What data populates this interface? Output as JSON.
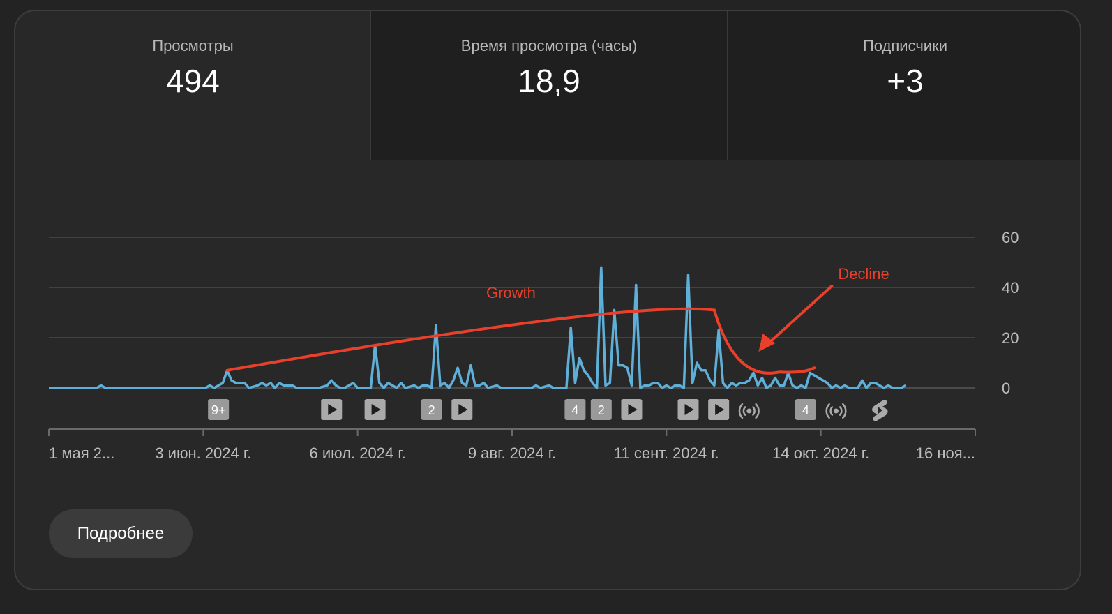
{
  "metrics": [
    {
      "label": "Просмотры",
      "value": "494"
    },
    {
      "label": "Время просмотра (часы)",
      "value": "18,9"
    },
    {
      "label": "Подписчики",
      "value": "+3"
    }
  ],
  "more_button": "Подробнее",
  "chart_data": {
    "type": "line",
    "title": "",
    "xlabel": "",
    "ylabel": "",
    "x_range": [
      "2024-05-01",
      "2024-11-30"
    ],
    "ylim": [
      0,
      60
    ],
    "y_ticks": [
      0,
      20,
      40,
      60
    ],
    "y_axis_position": "right",
    "grid": true,
    "x_tick_labels": [
      "1 мая 2...",
      "3 июн. 2024 г.",
      "6 июл. 2024 г.",
      "9 авг. 2024 г.",
      "11 сент. 2024 г.",
      "14 окт. 2024 г.",
      "16 ноя..."
    ],
    "series": [
      {
        "color": "#5fb0d9",
        "points": [
          [
            "2024-05-01",
            0
          ],
          [
            "2024-05-12",
            0
          ],
          [
            "2024-05-13",
            1
          ],
          [
            "2024-05-14",
            0
          ],
          [
            "2024-06-06",
            0
          ],
          [
            "2024-06-07",
            1
          ],
          [
            "2024-06-08",
            0
          ],
          [
            "2024-06-09",
            1
          ],
          [
            "2024-06-10",
            2
          ],
          [
            "2024-06-11",
            7
          ],
          [
            "2024-06-12",
            3
          ],
          [
            "2024-06-13",
            2
          ],
          [
            "2024-06-15",
            2
          ],
          [
            "2024-06-16",
            0
          ],
          [
            "2024-06-18",
            1
          ],
          [
            "2024-06-19",
            2
          ],
          [
            "2024-06-20",
            1
          ],
          [
            "2024-06-21",
            2
          ],
          [
            "2024-06-22",
            0
          ],
          [
            "2024-06-23",
            2
          ],
          [
            "2024-06-24",
            1
          ],
          [
            "2024-06-26",
            1
          ],
          [
            "2024-06-27",
            0
          ],
          [
            "2024-07-02",
            0
          ],
          [
            "2024-07-04",
            1
          ],
          [
            "2024-07-05",
            3
          ],
          [
            "2024-07-06",
            1
          ],
          [
            "2024-07-07",
            0
          ],
          [
            "2024-07-08",
            0
          ],
          [
            "2024-07-10",
            2
          ],
          [
            "2024-07-11",
            0
          ],
          [
            "2024-07-14",
            0
          ],
          [
            "2024-07-15",
            17
          ],
          [
            "2024-07-16",
            2
          ],
          [
            "2024-07-17",
            0
          ],
          [
            "2024-07-18",
            2
          ],
          [
            "2024-07-19",
            1
          ],
          [
            "2024-07-20",
            0
          ],
          [
            "2024-07-21",
            2
          ],
          [
            "2024-07-22",
            0
          ],
          [
            "2024-07-24",
            1
          ],
          [
            "2024-07-25",
            0
          ],
          [
            "2024-07-26",
            1
          ],
          [
            "2024-07-27",
            1
          ],
          [
            "2024-07-28",
            0
          ],
          [
            "2024-07-29",
            25
          ],
          [
            "2024-07-30",
            1
          ],
          [
            "2024-07-31",
            2
          ],
          [
            "2024-08-01",
            0
          ],
          [
            "2024-08-02",
            3
          ],
          [
            "2024-08-03",
            8
          ],
          [
            "2024-08-04",
            2
          ],
          [
            "2024-08-05",
            1
          ],
          [
            "2024-08-06",
            9
          ],
          [
            "2024-08-07",
            1
          ],
          [
            "2024-08-08",
            1
          ],
          [
            "2024-08-09",
            2
          ],
          [
            "2024-08-10",
            0
          ],
          [
            "2024-08-12",
            1
          ],
          [
            "2024-08-13",
            0
          ],
          [
            "2024-08-20",
            0
          ],
          [
            "2024-08-21",
            1
          ],
          [
            "2024-08-22",
            0
          ],
          [
            "2024-08-24",
            1
          ],
          [
            "2024-08-25",
            0
          ],
          [
            "2024-08-28",
            0
          ],
          [
            "2024-08-29",
            24
          ],
          [
            "2024-08-30",
            2
          ],
          [
            "2024-08-31",
            12
          ],
          [
            "2024-09-01",
            7
          ],
          [
            "2024-09-02",
            5
          ],
          [
            "2024-09-03",
            2
          ],
          [
            "2024-09-04",
            0
          ],
          [
            "2024-09-05",
            48
          ],
          [
            "2024-09-06",
            1
          ],
          [
            "2024-09-07",
            2
          ],
          [
            "2024-09-08",
            31
          ],
          [
            "2024-09-09",
            9
          ],
          [
            "2024-09-10",
            9
          ],
          [
            "2024-09-11",
            8
          ],
          [
            "2024-09-12",
            1
          ],
          [
            "2024-09-13",
            41
          ],
          [
            "2024-09-14",
            0
          ],
          [
            "2024-09-15",
            1
          ],
          [
            "2024-09-16",
            1
          ],
          [
            "2024-09-17",
            2
          ],
          [
            "2024-09-18",
            2
          ],
          [
            "2024-09-19",
            0
          ],
          [
            "2024-09-20",
            1
          ],
          [
            "2024-09-21",
            0
          ],
          [
            "2024-09-22",
            1
          ],
          [
            "2024-09-23",
            1
          ],
          [
            "2024-09-24",
            0
          ],
          [
            "2024-09-25",
            45
          ],
          [
            "2024-09-26",
            2
          ],
          [
            "2024-09-27",
            10
          ],
          [
            "2024-09-28",
            7
          ],
          [
            "2024-09-29",
            7
          ],
          [
            "2024-09-30",
            3
          ],
          [
            "2024-10-01",
            1
          ],
          [
            "2024-10-02",
            23
          ],
          [
            "2024-10-03",
            2
          ],
          [
            "2024-10-04",
            0
          ],
          [
            "2024-10-05",
            2
          ],
          [
            "2024-10-06",
            1
          ],
          [
            "2024-10-07",
            2
          ],
          [
            "2024-10-08",
            2
          ],
          [
            "2024-10-09",
            3
          ],
          [
            "2024-10-10",
            6
          ],
          [
            "2024-10-11",
            1
          ],
          [
            "2024-10-12",
            4
          ],
          [
            "2024-10-13",
            0
          ],
          [
            "2024-10-14",
            1
          ],
          [
            "2024-10-15",
            4
          ],
          [
            "2024-10-16",
            1
          ],
          [
            "2024-10-17",
            1
          ],
          [
            "2024-10-18",
            6
          ],
          [
            "2024-10-19",
            1
          ],
          [
            "2024-10-20",
            0
          ],
          [
            "2024-10-21",
            1
          ],
          [
            "2024-10-22",
            0
          ],
          [
            "2024-10-23",
            6
          ],
          [
            "2024-10-24",
            5
          ],
          [
            "2024-10-25",
            4
          ],
          [
            "2024-10-26",
            3
          ],
          [
            "2024-10-27",
            2
          ],
          [
            "2024-10-28",
            0
          ],
          [
            "2024-10-29",
            1
          ],
          [
            "2024-10-30",
            0
          ],
          [
            "2024-10-31",
            1
          ],
          [
            "2024-11-01",
            0
          ],
          [
            "2024-11-03",
            0
          ],
          [
            "2024-11-04",
            3
          ],
          [
            "2024-11-05",
            0
          ],
          [
            "2024-11-06",
            2
          ],
          [
            "2024-11-07",
            2
          ],
          [
            "2024-11-08",
            1
          ],
          [
            "2024-11-09",
            0
          ],
          [
            "2024-11-10",
            1
          ],
          [
            "2024-11-11",
            0
          ],
          [
            "2024-11-13",
            0
          ],
          [
            "2024-11-14",
            1
          ]
        ]
      }
    ],
    "event_markers": [
      {
        "date": "2024-06-09",
        "type": "count",
        "label": "9+"
      },
      {
        "date": "2024-07-05",
        "type": "video"
      },
      {
        "date": "2024-07-15",
        "type": "video"
      },
      {
        "date": "2024-07-28",
        "type": "count",
        "label": "2"
      },
      {
        "date": "2024-08-04",
        "type": "video"
      },
      {
        "date": "2024-08-30",
        "type": "count",
        "label": "4"
      },
      {
        "date": "2024-09-05",
        "type": "count",
        "label": "2"
      },
      {
        "date": "2024-09-12",
        "type": "video"
      },
      {
        "date": "2024-09-25",
        "type": "video"
      },
      {
        "date": "2024-10-02",
        "type": "video"
      },
      {
        "date": "2024-10-09",
        "type": "live"
      },
      {
        "date": "2024-10-22",
        "type": "count",
        "label": "4"
      },
      {
        "date": "2024-10-29",
        "type": "live"
      },
      {
        "date": "2024-11-08",
        "type": "shorts"
      }
    ],
    "annotations": [
      {
        "text": "Growth",
        "color": "#e8402a",
        "curve": [
          [
            "2024-06-11",
            7
          ],
          [
            "2024-09-10",
            32
          ],
          [
            "2024-10-01",
            31
          ]
        ]
      },
      {
        "text": "Decline",
        "color": "#e8402a",
        "curve": [
          [
            "2024-10-01",
            31
          ],
          [
            "2024-10-16",
            8
          ],
          [
            "2024-10-24",
            8
          ]
        ]
      }
    ]
  }
}
